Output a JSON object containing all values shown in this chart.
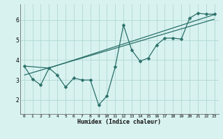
{
  "xlabel": "Humidex (Indice chaleur)",
  "background_color": "#d8f2f0",
  "grid_color": "#b0d8d4",
  "line_color": "#2a7068",
  "xlim": [
    -0.5,
    23.5
  ],
  "ylim": [
    1.3,
    6.8
  ],
  "yticks": [
    2,
    3,
    4,
    5,
    6
  ],
  "xticks": [
    0,
    1,
    2,
    3,
    4,
    5,
    6,
    7,
    8,
    9,
    10,
    11,
    12,
    13,
    14,
    15,
    16,
    17,
    18,
    19,
    20,
    21,
    22,
    23
  ],
  "series1_x": [
    0,
    1,
    2,
    3,
    4,
    5,
    6,
    7,
    8,
    9,
    10,
    11,
    12,
    13,
    14,
    15,
    16,
    17,
    18,
    19,
    20,
    21,
    22,
    23
  ],
  "series1_y": [
    3.7,
    3.05,
    2.75,
    3.6,
    3.25,
    2.65,
    3.1,
    3.0,
    3.0,
    1.75,
    2.2,
    3.65,
    5.75,
    4.5,
    3.95,
    4.1,
    4.75,
    5.1,
    5.1,
    5.05,
    6.1,
    6.35,
    6.3,
    6.3
  ],
  "trend1_x": [
    0,
    23
  ],
  "trend1_y": [
    3.25,
    6.05
  ],
  "trend2_x": [
    0,
    3,
    23
  ],
  "trend2_y": [
    3.7,
    3.6,
    6.28
  ],
  "marker": "D",
  "markersize": 2.5,
  "linewidth": 0.9
}
